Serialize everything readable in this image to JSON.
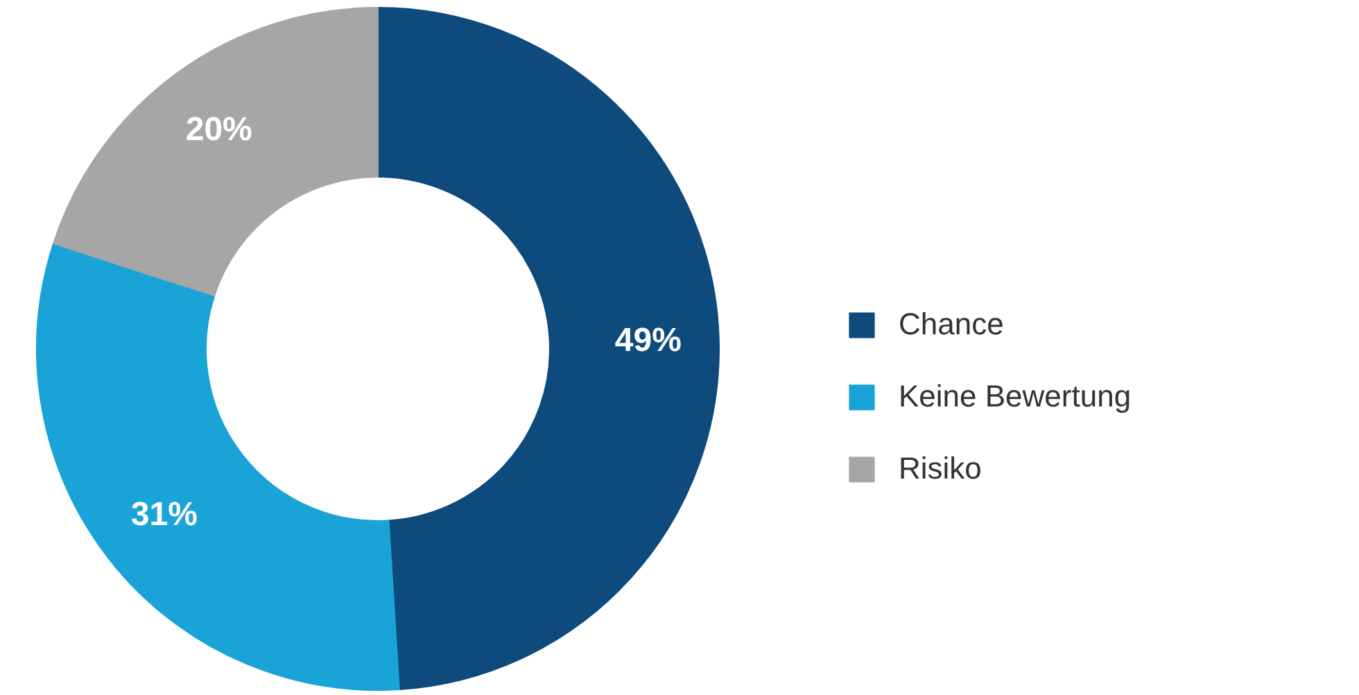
{
  "chart_data": {
    "type": "donut",
    "categories": [
      "Chance",
      "Keine Bewertung",
      "Risiko"
    ],
    "values": [
      49,
      31,
      20
    ],
    "colors": [
      "#0e4a7c",
      "#1aa3d6",
      "#a6a6a6"
    ],
    "value_labels": [
      "49%",
      "31%",
      "20%"
    ],
    "legend": "right"
  }
}
